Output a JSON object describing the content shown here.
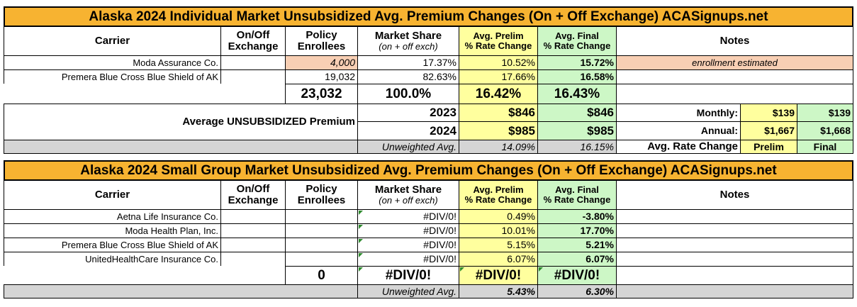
{
  "headers": {
    "carrier": "Carrier",
    "onoff": [
      "On/Off",
      "Exchange"
    ],
    "policy": [
      "Policy",
      "Enrollees"
    ],
    "share": [
      "Market Share",
      "(on + off exch)"
    ],
    "prelim": [
      "Avg. Prelim",
      "% Rate Change"
    ],
    "final": [
      "Avg. Final",
      "% Rate Change"
    ],
    "notes": "Notes"
  },
  "individual": {
    "title": "Alaska 2024 Individual Market Unsubsidized Avg. Premium Changes (On + Off Exchange) ACASignups.net",
    "rows": [
      {
        "carrier": "Moda Assurance Co.",
        "enrollees": "4,000",
        "share": "17.37%",
        "prelim": "10.52%",
        "final": "15.72%",
        "note": "enrollment estimated"
      },
      {
        "carrier": "Premera Blue Cross Blue Shield of AK",
        "enrollees": "19,032",
        "share": "82.63%",
        "prelim": "17.66%",
        "final": "16.58%",
        "note": ""
      }
    ],
    "totals": {
      "enrollees": "23,032",
      "share": "100.0%",
      "prelim": "16.42%",
      "final": "16.43%"
    },
    "avg_label": "Average UNSUBSIDIZED Premium",
    "year1": {
      "year": "2023",
      "prelim": "$846",
      "final": "$846"
    },
    "year2": {
      "year": "2024",
      "prelim": "$985",
      "final": "$985"
    },
    "monthly": {
      "label": "Monthly:",
      "prelim": "$139",
      "final": "$139"
    },
    "annual": {
      "label": "Annual:",
      "prelim": "$1,667",
      "final": "$1,668"
    },
    "unweighted": {
      "label": "Unweighted Avg.",
      "prelim": "14.09%",
      "final": "16.15%"
    },
    "rate_change": {
      "label": "Avg. Rate Change",
      "prelim": "Prelim",
      "final": "Final"
    }
  },
  "small_group": {
    "title": "Alaska 2024 Small Group Market Unsubsidized Avg. Premium Changes (On + Off Exchange) ACASignups.net",
    "rows": [
      {
        "carrier": "Aetna Life Insurance Co.",
        "share": "#DIV/0!",
        "prelim": "0.49%",
        "final": "-3.80%"
      },
      {
        "carrier": "Moda Health Plan, Inc.",
        "share": "#DIV/0!",
        "prelim": "10.01%",
        "final": "17.70%"
      },
      {
        "carrier": "Premera Blue Cross Blue Shield of AK",
        "share": "#DIV/0!",
        "prelim": "5.15%",
        "final": "5.21%"
      },
      {
        "carrier": "UnitedHealthCare Insurance Co.",
        "share": "#DIV/0!",
        "prelim": "6.07%",
        "final": "6.07%"
      }
    ],
    "totals": {
      "enrollees": "0",
      "share": "#DIV/0!",
      "prelim": "#DIV/0!",
      "final": "#DIV/0!"
    },
    "unweighted": {
      "label": "Unweighted Avg.",
      "prelim": "5.43%",
      "final": "6.30%"
    }
  }
}
